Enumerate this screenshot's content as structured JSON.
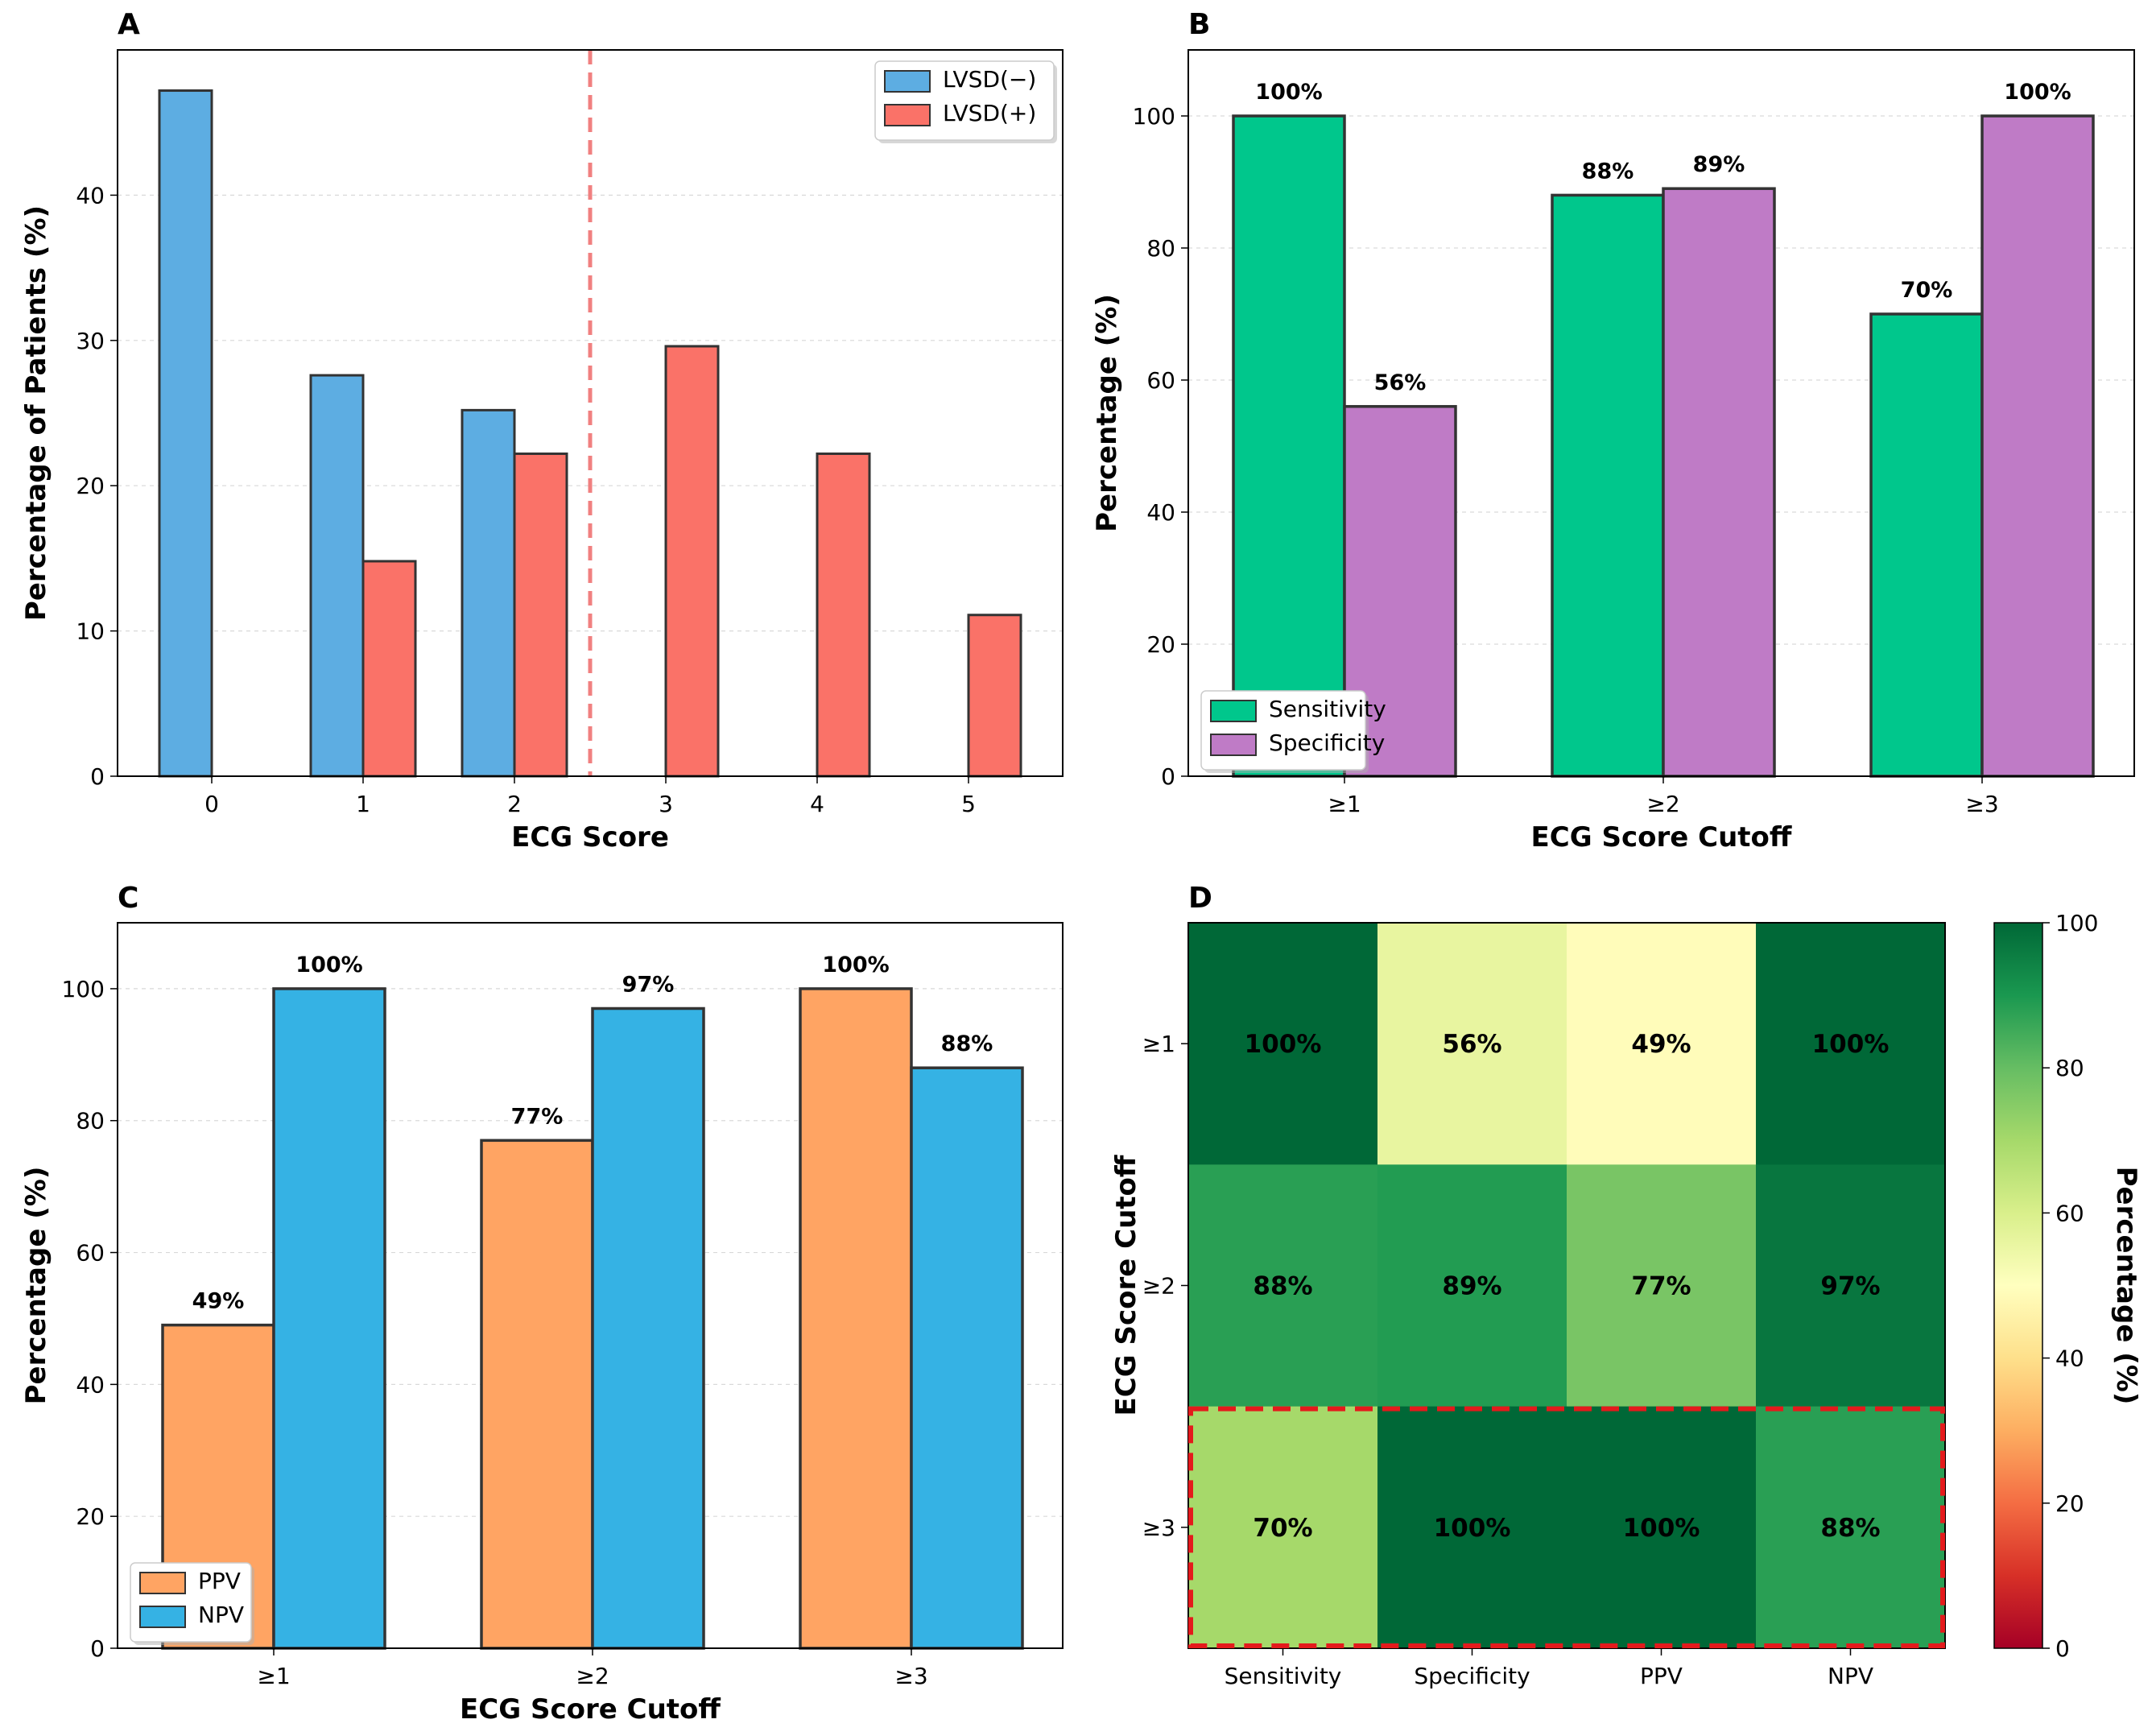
{
  "chart_data": [
    {
      "panel": "A",
      "type": "bar",
      "xlabel": "ECG Score",
      "ylabel": "Percentage of Patients (%)",
      "categories": [
        "0",
        "1",
        "2",
        "3",
        "4",
        "5"
      ],
      "series": [
        {
          "name": "LVSD(−)",
          "values": [
            47.2,
            27.6,
            25.2,
            0,
            0,
            0
          ],
          "color": "#5dade2"
        },
        {
          "name": "LVSD(+)",
          "values": [
            0,
            14.8,
            22.2,
            29.6,
            22.2,
            11.1
          ],
          "color": "#fa7268"
        }
      ],
      "ylim": [
        0,
        50
      ],
      "yticks": [
        "0",
        "10",
        "20",
        "30",
        "40"
      ],
      "cutoff_line": {
        "x": 2.5,
        "color": "#f08080",
        "style": "dashed"
      },
      "legend_position": "top-right"
    },
    {
      "panel": "B",
      "type": "bar",
      "xlabel": "ECG Score Cutoff",
      "ylabel": "Percentage (%)",
      "categories": [
        "≥1",
        "≥2",
        "≥3"
      ],
      "series": [
        {
          "name": "Sensitivity",
          "values": [
            100,
            88,
            70
          ],
          "labels": [
            "100%",
            "88%",
            "70%"
          ],
          "color": "#00c78c"
        },
        {
          "name": "Specificity",
          "values": [
            56,
            89,
            100
          ],
          "labels": [
            "56%",
            "89%",
            "100%"
          ],
          "color": "#bf7bc6"
        }
      ],
      "ylim": [
        0,
        110
      ],
      "yticks": [
        "0",
        "20",
        "40",
        "60",
        "80",
        "100"
      ],
      "legend_position": "bottom-left"
    },
    {
      "panel": "C",
      "type": "bar",
      "xlabel": "ECG Score Cutoff",
      "ylabel": "Percentage (%)",
      "categories": [
        "≥1",
        "≥2",
        "≥3"
      ],
      "series": [
        {
          "name": "PPV",
          "values": [
            49,
            77,
            100
          ],
          "labels": [
            "49%",
            "77%",
            "100%"
          ],
          "color": "#ffa463"
        },
        {
          "name": "NPV",
          "values": [
            100,
            97,
            88
          ],
          "labels": [
            "100%",
            "97%",
            "88%"
          ],
          "color": "#35b2e4"
        }
      ],
      "ylim": [
        0,
        110
      ],
      "yticks": [
        "0",
        "20",
        "40",
        "60",
        "80",
        "100"
      ],
      "legend_position": "bottom-left"
    },
    {
      "panel": "D",
      "type": "heatmap",
      "ylabel": "ECG Score Cutoff",
      "colorbar_label": "Percentage (%)",
      "x": [
        "Sensitivity",
        "Specificity",
        "PPV",
        "NPV"
      ],
      "y": [
        "≥1",
        "≥2",
        "≥3"
      ],
      "values": [
        [
          100,
          56,
          49,
          100
        ],
        [
          88,
          89,
          77,
          97
        ],
        [
          70,
          100,
          100,
          88
        ]
      ],
      "labels": [
        [
          "100%",
          "56%",
          "49%",
          "100%"
        ],
        [
          "88%",
          "89%",
          "77%",
          "97%"
        ],
        [
          "70%",
          "100%",
          "100%",
          "88%"
        ]
      ],
      "zlim": [
        0,
        100
      ],
      "colorbar_ticks": [
        "0",
        "20",
        "40",
        "60",
        "80",
        "100"
      ],
      "highlight_row": "≥3",
      "highlight_color": "#e41a1c"
    }
  ]
}
